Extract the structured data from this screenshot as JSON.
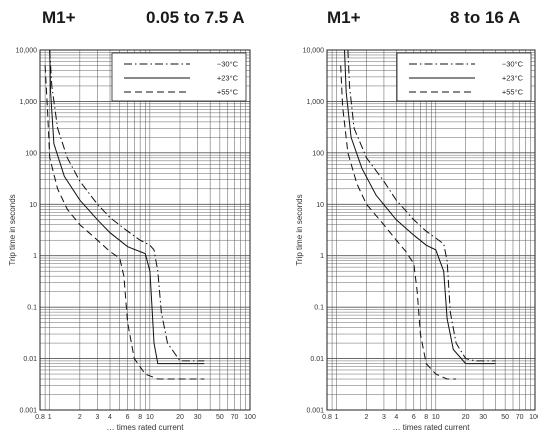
{
  "headings": [
    {
      "product": "M1+",
      "range": "0.05 to 7.5 A"
    },
    {
      "product": "M1+",
      "range": "8 to 16 A"
    }
  ],
  "chart_data": [
    {
      "type": "line",
      "title": "M1+ 0.05 to 7.5 A",
      "xlabel": "… times rated current",
      "ylabel": "Trip time in seconds",
      "x_scale": "log",
      "y_scale": "log",
      "xlim": [
        0.8,
        100
      ],
      "ylim": [
        0.001,
        10000
      ],
      "x_ticks": [
        "0.8",
        "1",
        "2",
        "3",
        "4",
        "6",
        "8",
        "10",
        "20",
        "30",
        "50",
        "70",
        "100"
      ],
      "y_ticks": [
        "10,000",
        "1,000",
        "100",
        "10",
        "1",
        "0.1",
        "0.01",
        "0.001"
      ],
      "grid": true,
      "legend_position": "top-right",
      "series": [
        {
          "name": "−30°C",
          "style": "dash-dot",
          "points": [
            [
              1.0,
              10000
            ],
            [
              1.05,
              2000
            ],
            [
              1.2,
              300
            ],
            [
              1.5,
              80
            ],
            [
              2.0,
              28
            ],
            [
              3.0,
              10
            ],
            [
              4.0,
              5.5
            ],
            [
              6.0,
              3
            ],
            [
              8.0,
              2
            ],
            [
              10.0,
              1.6
            ],
            [
              11.0,
              1.3
            ],
            [
              12.0,
              0.5
            ],
            [
              13.0,
              0.08
            ],
            [
              15.0,
              0.02
            ],
            [
              20.0,
              0.009
            ],
            [
              35.0,
              0.009
            ]
          ]
        },
        {
          "name": "+23°C",
          "style": "solid",
          "points": [
            [
              1.0,
              10000
            ],
            [
              1.02,
              1500
            ],
            [
              1.1,
              150
            ],
            [
              1.4,
              35
            ],
            [
              2.0,
              12
            ],
            [
              3.0,
              5
            ],
            [
              4.0,
              2.8
            ],
            [
              6.0,
              1.5
            ],
            [
              8.0,
              1.2
            ],
            [
              9.0,
              1.1
            ],
            [
              10.0,
              0.5
            ],
            [
              10.5,
              0.1
            ],
            [
              11.0,
              0.02
            ],
            [
              12.0,
              0.008
            ],
            [
              20.0,
              0.008
            ],
            [
              35.0,
              0.008
            ]
          ]
        },
        {
          "name": "+55°C",
          "style": "dashed",
          "points": [
            [
              0.9,
              5000
            ],
            [
              0.95,
              700
            ],
            [
              1.0,
              80
            ],
            [
              1.2,
              20
            ],
            [
              1.5,
              8
            ],
            [
              2.0,
              4
            ],
            [
              3.0,
              2
            ],
            [
              4.0,
              1.2
            ],
            [
              5.0,
              0.9
            ],
            [
              5.5,
              0.4
            ],
            [
              6.0,
              0.05
            ],
            [
              7.0,
              0.01
            ],
            [
              9.0,
              0.005
            ],
            [
              12.0,
              0.004
            ],
            [
              20.0,
              0.004
            ],
            [
              35.0,
              0.004
            ]
          ]
        }
      ]
    },
    {
      "type": "line",
      "title": "M1+ 8 to 16 A",
      "xlabel": "… times rated current",
      "ylabel": "Trip time in seconds",
      "x_scale": "log",
      "y_scale": "log",
      "xlim": [
        0.8,
        100
      ],
      "ylim": [
        0.001,
        10000
      ],
      "x_ticks": [
        "0.8",
        "1",
        "2",
        "3",
        "4",
        "6",
        "8",
        "10",
        "20",
        "30",
        "50",
        "70",
        "100"
      ],
      "y_ticks": [
        "10,000",
        "1,000",
        "100",
        "10",
        "1",
        "0.1",
        "0.01",
        "0.001"
      ],
      "grid": true,
      "legend_position": "top-right",
      "series": [
        {
          "name": "−30°C",
          "style": "dash-dot",
          "points": [
            [
              1.3,
              10000
            ],
            [
              1.35,
              2000
            ],
            [
              1.5,
              300
            ],
            [
              2.0,
              80
            ],
            [
              3.0,
              28
            ],
            [
              4.0,
              12
            ],
            [
              6.0,
              5
            ],
            [
              8.0,
              3
            ],
            [
              10.0,
              2.2
            ],
            [
              12.0,
              1.7
            ],
            [
              13.0,
              0.8
            ],
            [
              14.0,
              0.08
            ],
            [
              16.0,
              0.02
            ],
            [
              20.0,
              0.01
            ],
            [
              25.0,
              0.009
            ],
            [
              40.0,
              0.009
            ]
          ]
        },
        {
          "name": "+23°C",
          "style": "solid",
          "points": [
            [
              1.2,
              10000
            ],
            [
              1.25,
              1500
            ],
            [
              1.4,
              200
            ],
            [
              1.8,
              50
            ],
            [
              2.5,
              15
            ],
            [
              4.0,
              5
            ],
            [
              6.0,
              2.5
            ],
            [
              8.0,
              1.6
            ],
            [
              10.0,
              1.3
            ],
            [
              12.0,
              0.5
            ],
            [
              13.0,
              0.06
            ],
            [
              15.0,
              0.015
            ],
            [
              20.0,
              0.008
            ],
            [
              40.0,
              0.008
            ]
          ]
        },
        {
          "name": "+55°C",
          "style": "dashed",
          "points": [
            [
              1.1,
              5000
            ],
            [
              1.15,
              800
            ],
            [
              1.3,
              100
            ],
            [
              1.6,
              25
            ],
            [
              2.0,
              10
            ],
            [
              3.0,
              4
            ],
            [
              4.0,
              2
            ],
            [
              5.0,
              1.2
            ],
            [
              6.0,
              0.7
            ],
            [
              6.5,
              0.2
            ],
            [
              7.0,
              0.03
            ],
            [
              8.0,
              0.008
            ],
            [
              10.0,
              0.005
            ],
            [
              13.0,
              0.004
            ],
            [
              16.0,
              0.004
            ]
          ]
        }
      ]
    }
  ]
}
